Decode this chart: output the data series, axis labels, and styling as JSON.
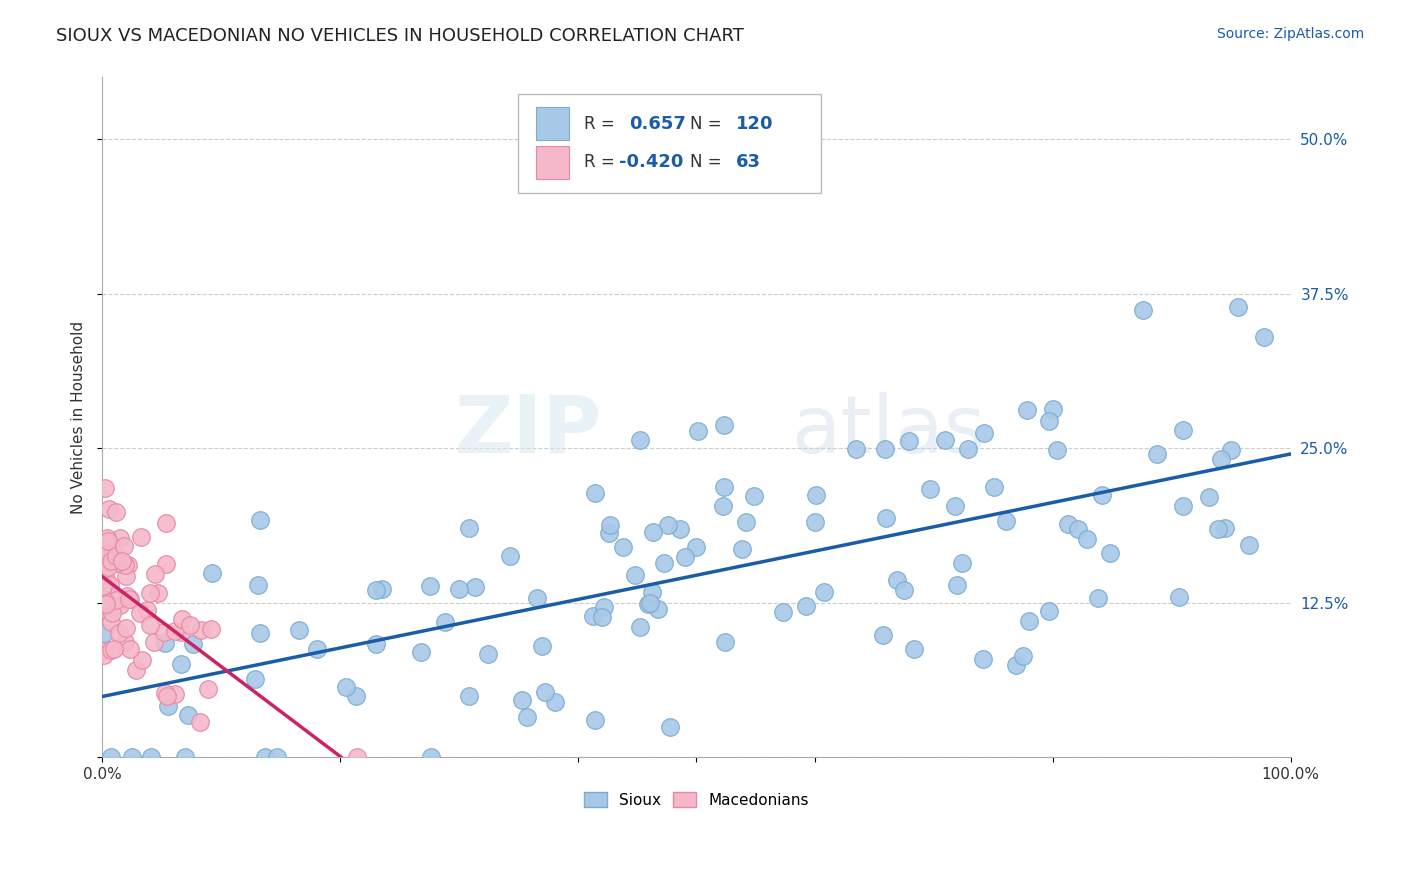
{
  "title": "SIOUX VS MACEDONIAN NO VEHICLES IN HOUSEHOLD CORRELATION CHART",
  "source": "Source: ZipAtlas.com",
  "ylabel": "No Vehicles in Household",
  "sioux_R": 0.657,
  "sioux_N": 120,
  "mace_R": -0.42,
  "mace_N": 63,
  "sioux_color": "#a8c8e8",
  "sioux_edge": "#7aadd4",
  "mace_color": "#f4b8c8",
  "mace_edge": "#e888a8",
  "line_blue": "#1a5ca8",
  "line_pink": "#cc2266",
  "legend_label_sioux": "Sioux",
  "legend_label_mace": "Macedonians",
  "background_color": "#ffffff",
  "watermark": "ZIPatlas",
  "title_color": "#222222",
  "source_color": "#1a5ca8",
  "axis_label_color": "#1a5ca8",
  "ytick_color": "#1a5ca8",
  "xtick_color": "#333333"
}
